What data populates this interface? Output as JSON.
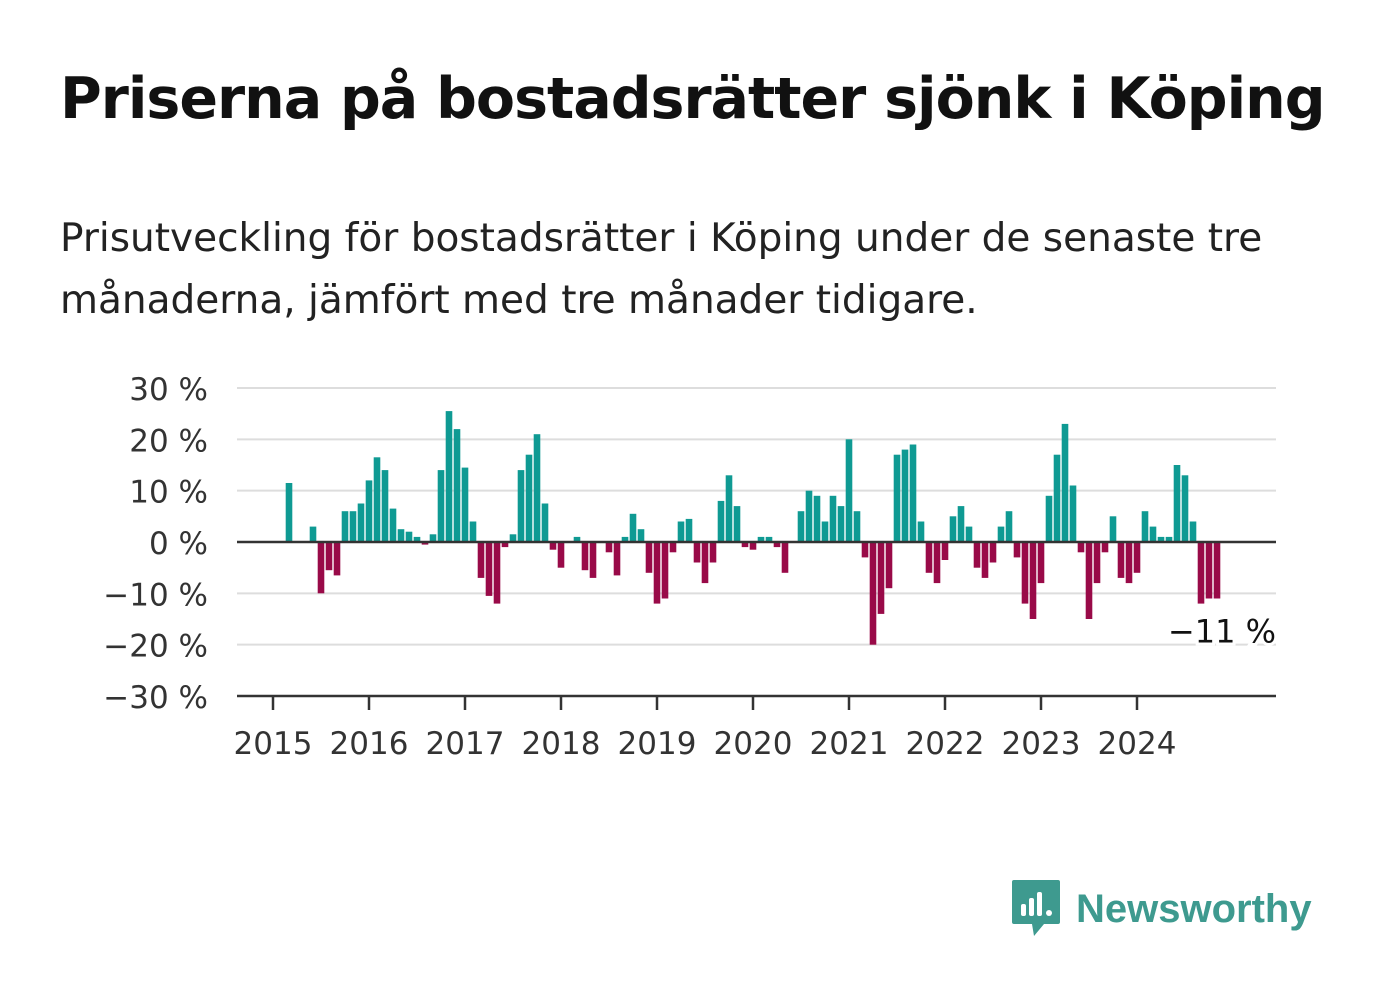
{
  "title": "Priserna på bostadsrätter sjönk i Köping",
  "subtitle": "Prisutveckling för bostadsrätter i Köping under de senaste tre månaderna, jämfört med tre månader tidigare.",
  "brand": {
    "name": "Newsworthy",
    "icon": "newsworthy-logo-icon",
    "color": "#3e9a8f"
  },
  "colors": {
    "positive": "#0f9a93",
    "negative": "#990a48",
    "grid": "#dddddd",
    "axis": "#333333"
  },
  "chart_data": {
    "type": "bar",
    "ylim": [
      -30,
      30
    ],
    "yticks": [
      30,
      20,
      10,
      0,
      -10,
      -20,
      -30
    ],
    "ytick_labels": [
      "30 %",
      "20 %",
      "10 %",
      "0 %",
      "−10 %",
      "−20 %",
      "−30 %"
    ],
    "x_start": "2015-01",
    "xtick_labels": [
      "2015",
      "2016",
      "2017",
      "2018",
      "2019",
      "2020",
      "2021",
      "2022",
      "2023",
      "2024"
    ],
    "annotation": "−11 %",
    "grid": true,
    "values": [
      0,
      0,
      11.5,
      0,
      0,
      3,
      -10,
      -5.5,
      -6.5,
      6,
      6,
      7.5,
      12,
      16.5,
      14,
      6.5,
      2.5,
      2,
      1,
      -0.5,
      1.5,
      14,
      25.5,
      22,
      14.5,
      4,
      -7,
      -10.5,
      -12,
      -1,
      1.5,
      14,
      17,
      21,
      7.5,
      -1.5,
      -5,
      0,
      1,
      -5.5,
      -7,
      0,
      -2,
      -6.5,
      1,
      5.5,
      2.5,
      -6,
      -12,
      -11,
      -2,
      4,
      4.5,
      -4,
      -8,
      -4,
      8,
      13,
      7,
      -1,
      -1.5,
      1,
      1,
      -1,
      -6,
      0,
      6,
      10,
      9,
      4,
      9,
      7,
      20,
      6,
      -3,
      -20,
      -14,
      -9,
      17,
      18,
      19,
      4,
      -6,
      -8,
      -3.5,
      5,
      7,
      3,
      -5,
      -7,
      -4,
      3,
      6,
      -3,
      -12,
      -15,
      -8,
      9,
      17,
      23,
      11,
      -2,
      -15,
      -8,
      -2,
      5,
      -7,
      -8,
      -6,
      6,
      3,
      1,
      1,
      15,
      13,
      4,
      -12,
      -11,
      -11
    ]
  }
}
